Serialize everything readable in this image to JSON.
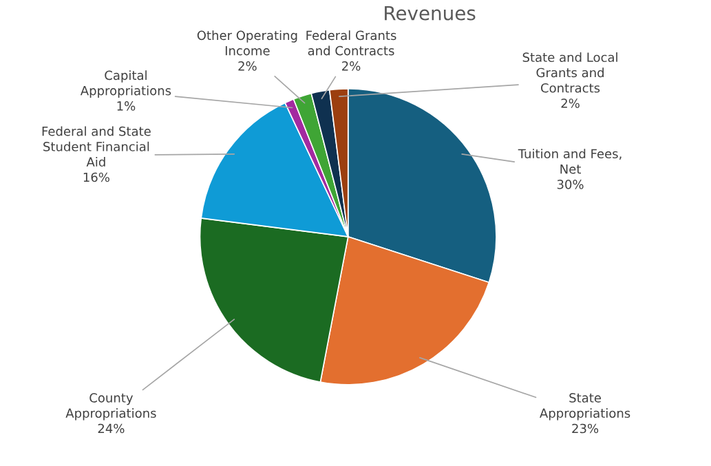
{
  "chart_data": {
    "type": "pie",
    "title": "Revenues",
    "categories": [
      "Tuition and Fees,\nNet",
      "State\nAppropriations",
      "County\nAppropriations",
      "Federal and State\nStudent Financial\nAid",
      "Capital\nAppropriations",
      "Other Operating\nIncome",
      "Federal Grants\nand Contracts",
      "State and Local\nGrants and\nContracts"
    ],
    "values": [
      30,
      23,
      24,
      16,
      1,
      2,
      2,
      2
    ],
    "value_labels": [
      "30%",
      "23%",
      "24%",
      "16%",
      "1%",
      "2%",
      "2%",
      "2%"
    ],
    "colors": [
      "#155f80",
      "#e36f2f",
      "#1b6b22",
      "#0f9bd6",
      "#a32aa0",
      "#3fa535",
      "#0f3150",
      "#9c3f0f"
    ],
    "legend": false
  }
}
